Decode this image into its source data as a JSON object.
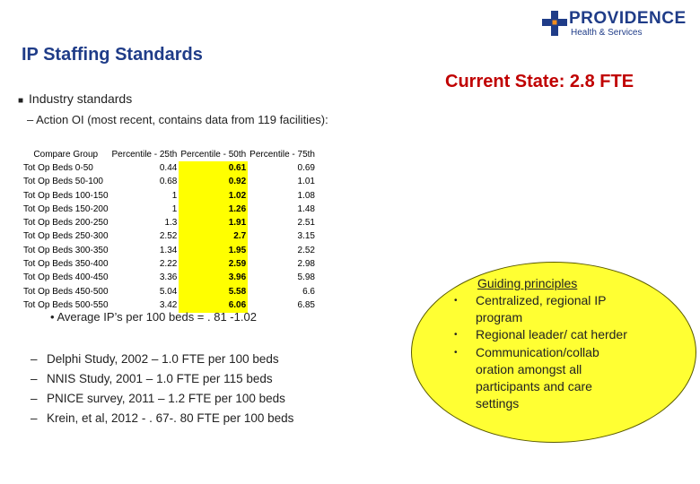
{
  "slide": {
    "title": "IP Staffing Standards",
    "current_state": "Current State: 2.8 FTE"
  },
  "logo": {
    "name": "PROVIDENCE",
    "subtitle": "Health & Services"
  },
  "industry": {
    "bullet": "Industry standards",
    "sub": "– Action OI (most recent, contains data from 119 facilities):"
  },
  "table": {
    "headers": [
      "Compare Group",
      "Percentile - 25th",
      "Percentile - 50th",
      "Percentile - 75th"
    ],
    "rows": [
      {
        "group": "Tot Op Beds 0-50",
        "p25": "0.44",
        "p50": "0.61",
        "p75": "0.69"
      },
      {
        "group": "Tot Op Beds 50-100",
        "p25": "0.68",
        "p50": "0.92",
        "p75": "1.01"
      },
      {
        "group": "Tot Op Beds 100-150",
        "p25": "1",
        "p50": "1.02",
        "p75": "1.08"
      },
      {
        "group": "Tot Op Beds 150-200",
        "p25": "1",
        "p50": "1.26",
        "p75": "1.48"
      },
      {
        "group": "Tot Op Beds 200-250",
        "p25": "1.3",
        "p50": "1.91",
        "p75": "2.51"
      },
      {
        "group": "Tot Op Beds 250-300",
        "p25": "2.52",
        "p50": "2.7",
        "p75": "3.15"
      },
      {
        "group": "Tot Op Beds 300-350",
        "p25": "1.34",
        "p50": "1.95",
        "p75": "2.52"
      },
      {
        "group": "Tot Op Beds 350-400",
        "p25": "2.22",
        "p50": "2.59",
        "p75": "2.98"
      },
      {
        "group": "Tot Op Beds 400-450",
        "p25": "3.36",
        "p50": "3.96",
        "p75": "5.98"
      },
      {
        "group": "Tot Op Beds 450-500",
        "p25": "5.04",
        "p50": "5.58",
        "p75": "6.6"
      },
      {
        "group": "Tot Op Beds 500-550",
        "p25": "3.42",
        "p50": "6.06",
        "p75": "6.85"
      }
    ]
  },
  "average": "Average IP’s per 100 beds = . 81 -1.02",
  "references": [
    "Delphi Study, 2002 – 1.0 FTE per 100 beds",
    "NNIS Study, 2001 – 1.0 FTE per 115 beds",
    "PNICE survey, 2011 – 1.2 FTE per 100 beds",
    "Krein, et al, 2012 - . 67-. 80 FTE per 100 beds"
  ],
  "guiding": {
    "title": "Guiding principles",
    "items": [
      "Centralized, regional IP program",
      "Regional leader/ cat herder",
      "Communication/collab oration amongst all participants and care settings"
    ]
  },
  "colors": {
    "title_blue": "#1f3c88",
    "current_red": "#c00000",
    "logo_orange": "#f28c1e",
    "highlight_yellow": "#ffff00",
    "ellipse_yellow": "#ffff33"
  }
}
